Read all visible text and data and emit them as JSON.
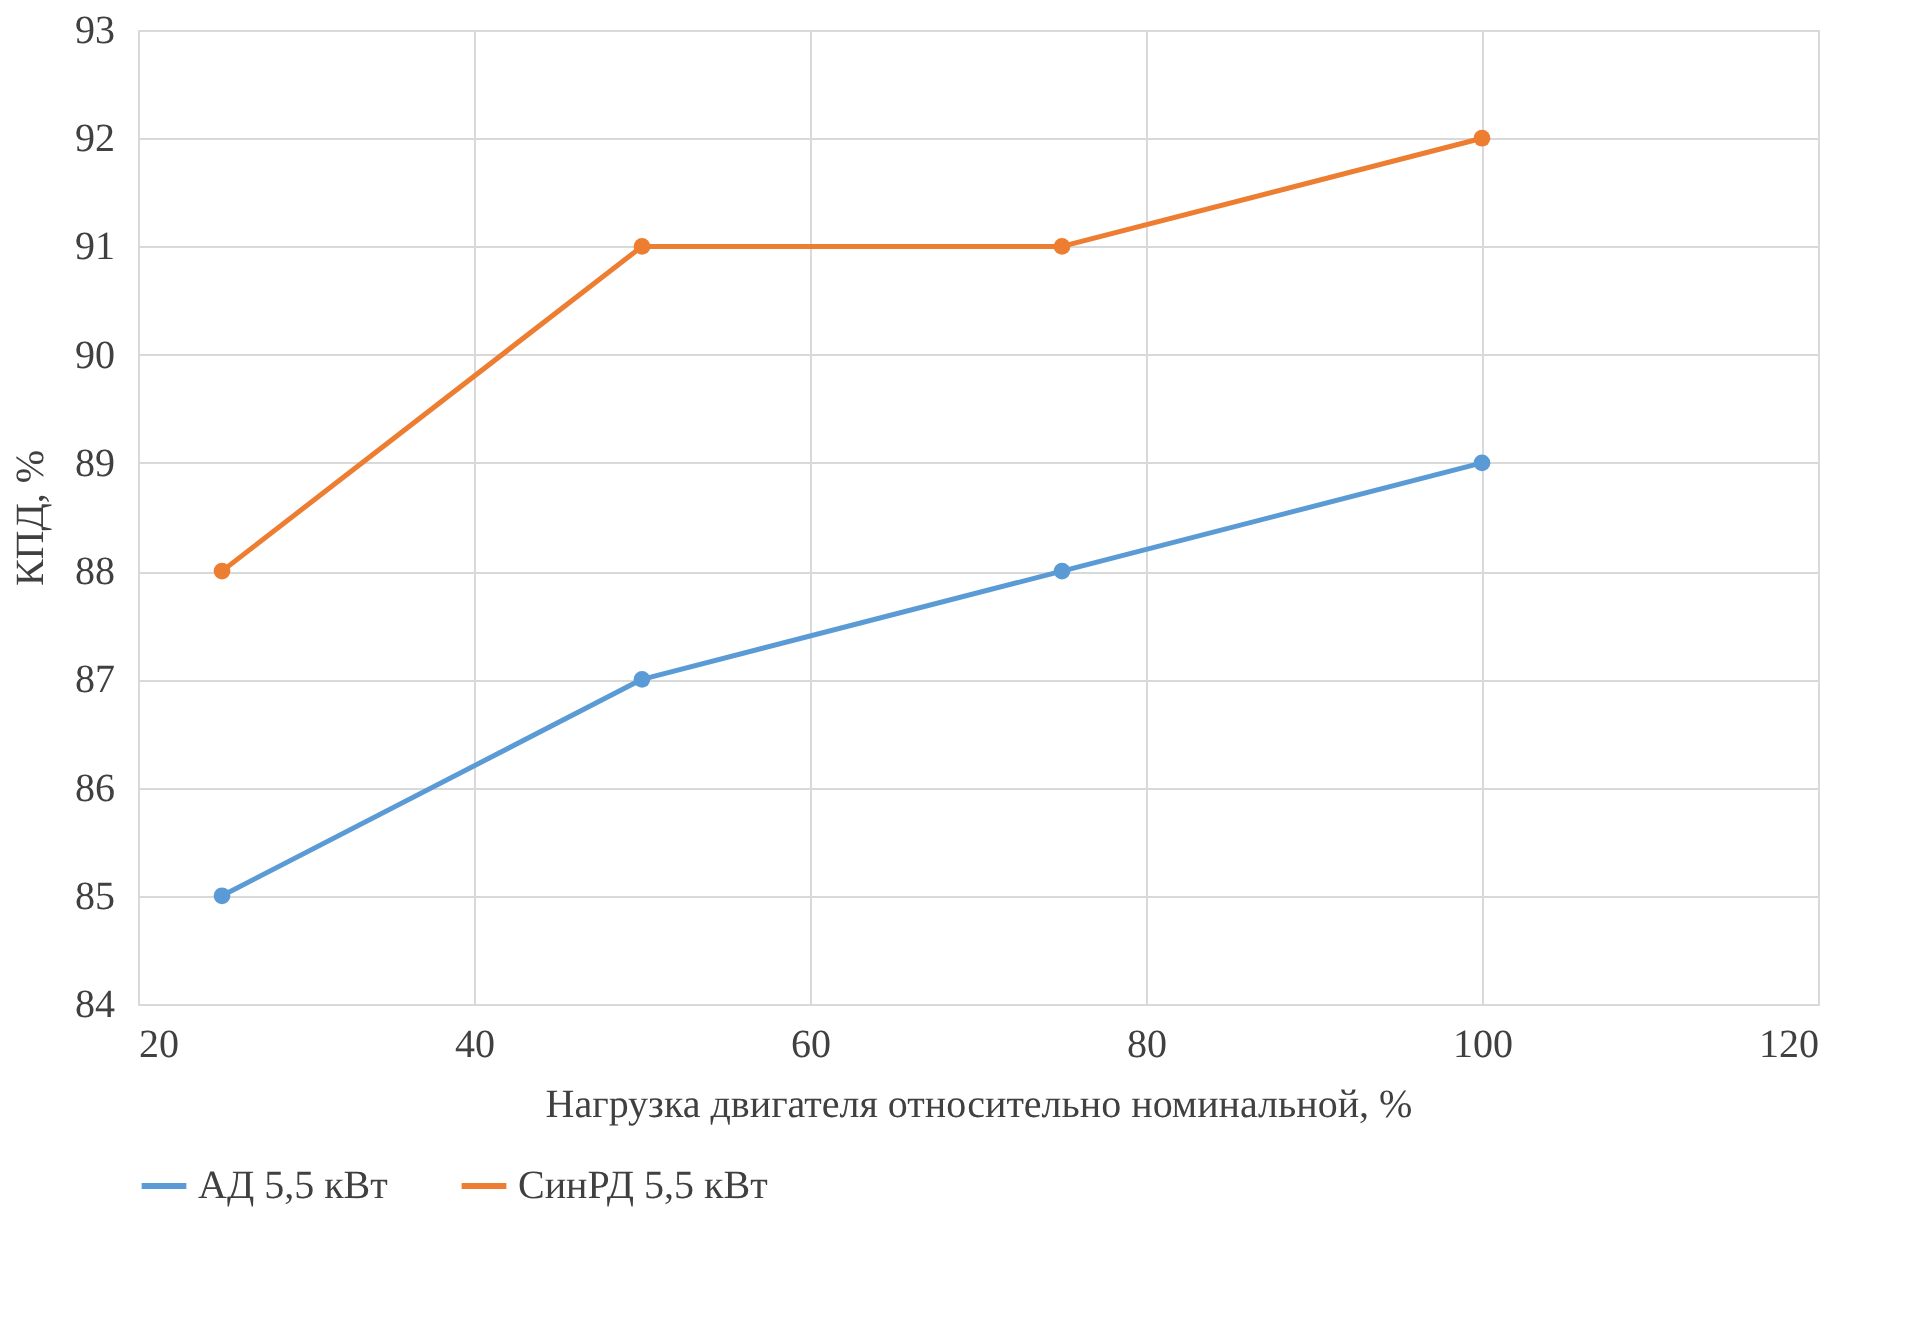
{
  "chart_data": {
    "type": "line",
    "xlabel": "Нагрузка двигателя относительно номинальной, %",
    "ylabel": "КПД, %",
    "x": [
      25,
      50,
      75,
      100
    ],
    "series": [
      {
        "name": "АД 5,5 кВт",
        "color": "#5b9bd5",
        "values": [
          85,
          87,
          88,
          89
        ]
      },
      {
        "name": "СинРД 5,5 кВт",
        "color": "#ed7d31",
        "values": [
          88,
          91,
          91,
          92
        ]
      }
    ],
    "xlim": [
      20,
      120
    ],
    "xticks": [
      20,
      40,
      60,
      80,
      100,
      120
    ],
    "ylim": [
      84,
      93
    ],
    "yticks": [
      84,
      85,
      86,
      87,
      88,
      89,
      90,
      91,
      92,
      93
    ],
    "grid": true,
    "legend": "bottom",
    "marker": "circle",
    "line_style": "solid"
  }
}
